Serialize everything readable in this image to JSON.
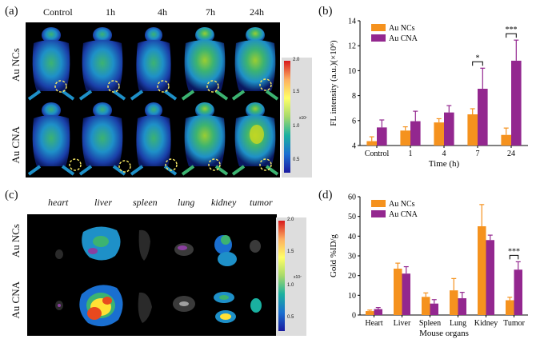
{
  "panel_a": {
    "label": "(a)",
    "columns": [
      "Control",
      "1h",
      "4h",
      "7h",
      "24h"
    ],
    "rows": [
      "Au NCs",
      "Au CNA"
    ],
    "colorbar": {
      "ticks": [
        "2.0",
        "1.5",
        "1.0",
        "0.5"
      ],
      "unit": "x10⁷"
    }
  },
  "panel_c": {
    "label": "(c)",
    "columns": [
      "heart",
      "liver",
      "spleen",
      "lung",
      "kidney",
      "tumor"
    ],
    "rows": [
      "Au NCs",
      "Au CNA"
    ],
    "colorbar": {
      "ticks": [
        "2.0",
        "1.5",
        "1.0",
        "0.5"
      ],
      "unit": "x10⁷"
    }
  },
  "chart_data": [
    {
      "panel": "(b)",
      "type": "bar",
      "categories": [
        "Control",
        "1",
        "4",
        "7",
        "24"
      ],
      "series": [
        {
          "name": "Au NCs",
          "values": [
            4.35,
            5.2,
            5.85,
            6.5,
            4.85
          ],
          "errors": [
            0.35,
            0.3,
            0.3,
            0.45,
            0.55
          ],
          "color": "#f5921e"
        },
        {
          "name": "Au CNA",
          "values": [
            5.45,
            5.95,
            6.65,
            8.55,
            10.8
          ],
          "errors": [
            0.6,
            0.8,
            0.55,
            1.65,
            1.65
          ],
          "color": "#93278f"
        }
      ],
      "xlabel": "Time (h)",
      "ylabel": "FL intensity (a.u.)(×10⁶)",
      "ylim": [
        4,
        14
      ],
      "yticks": [
        "4",
        "6",
        "8",
        "10",
        "12",
        "14"
      ],
      "significance": [
        {
          "category": "7",
          "text": "*"
        },
        {
          "category": "24",
          "text": "***"
        }
      ],
      "legend": "upper-left"
    },
    {
      "panel": "(d)",
      "type": "bar",
      "categories": [
        "Heart",
        "Liver",
        "Spleen",
        "Lung",
        "Kidney",
        "Tumor"
      ],
      "series": [
        {
          "name": "Au NCs",
          "values": [
            2,
            23.5,
            9.2,
            12.5,
            45,
            7.5
          ],
          "errors": [
            0.5,
            2.8,
            2,
            6,
            11,
            1.5
          ],
          "color": "#f5921e"
        },
        {
          "name": "Au CNA",
          "values": [
            3,
            21,
            5.8,
            8.5,
            38,
            23
          ],
          "errors": [
            0.8,
            3.5,
            2,
            3,
            2.5,
            4
          ],
          "color": "#93278f"
        }
      ],
      "xlabel": "Mouse organs",
      "ylabel": "Gold %ID/g",
      "ylim": [
        0,
        60
      ],
      "yticks": [
        "0",
        "10",
        "20",
        "30",
        "40",
        "50",
        "60"
      ],
      "significance": [
        {
          "category": "Tumor",
          "text": "***"
        }
      ],
      "legend": "upper-left"
    }
  ]
}
